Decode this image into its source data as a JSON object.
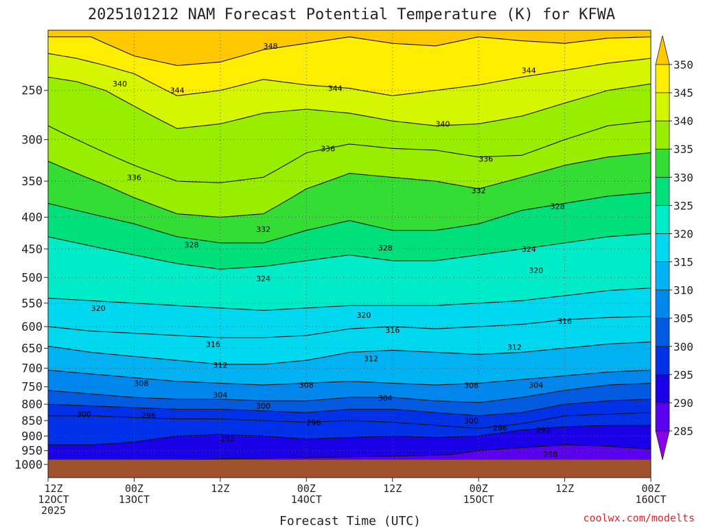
{
  "title": "2025101212 NAM Forecast Potential Temperature (K) for KFWA",
  "credit": "coolwx.com/modelts",
  "chart_data": {
    "type": "heatmap",
    "title": "2025101212 NAM Forecast Potential Temperature (K) for KFWA",
    "xlabel": "Forecast Time (UTC)",
    "ylabel": "",
    "y_scale": "log-pressure (hPa), reversed",
    "ylim": [
      1050,
      200
    ],
    "xlim_hours": [
      0,
      84
    ],
    "y_ticks": [
      250,
      300,
      350,
      400,
      450,
      500,
      550,
      600,
      650,
      700,
      750,
      800,
      850,
      900,
      950,
      1000
    ],
    "x_ticks": [
      {
        "hour": 0,
        "lines": [
          "12Z",
          "12OCT",
          "2025"
        ]
      },
      {
        "hour": 12,
        "lines": [
          "00Z",
          "13OCT"
        ]
      },
      {
        "hour": 24,
        "lines": [
          "12Z"
        ]
      },
      {
        "hour": 36,
        "lines": [
          "00Z",
          "14OCT"
        ]
      },
      {
        "hour": 48,
        "lines": [
          "12Z"
        ]
      },
      {
        "hour": 60,
        "lines": [
          "00Z",
          "15OCT"
        ]
      },
      {
        "hour": 72,
        "lines": [
          "12Z"
        ]
      },
      {
        "hour": 84,
        "lines": [
          "00Z",
          "16OCT"
        ]
      }
    ],
    "colorbar": {
      "levels": [
        285,
        290,
        295,
        300,
        305,
        310,
        315,
        320,
        325,
        330,
        335,
        340,
        345,
        350
      ],
      "colors": [
        "#8a00e8",
        "#5a00ef",
        "#1a00e6",
        "#0030e8",
        "#005be0",
        "#0087ee",
        "#00b2f2",
        "#00d8f0",
        "#00ecc8",
        "#00e07a",
        "#33dd33",
        "#99ee00",
        "#d6f500",
        "#ffee00",
        "#ffc800"
      ],
      "extend": "both"
    },
    "ground_color": "#a0522d",
    "ground_pressure": 1000,
    "isentropes": [
      {
        "theta": 348,
        "points": [
          [
            0,
            205
          ],
          [
            6,
            205
          ],
          [
            12,
            220
          ],
          [
            18,
            228
          ],
          [
            24,
            225
          ],
          [
            30,
            215
          ],
          [
            36,
            210
          ],
          [
            42,
            205
          ],
          [
            48,
            210
          ],
          [
            54,
            212
          ],
          [
            60,
            205
          ],
          [
            66,
            208
          ],
          [
            72,
            210
          ],
          [
            78,
            206
          ],
          [
            84,
            205
          ]
        ]
      },
      {
        "theta": 344,
        "points": [
          [
            0,
            218
          ],
          [
            4,
            222
          ],
          [
            8,
            228
          ],
          [
            12,
            235
          ],
          [
            18,
            255
          ],
          [
            24,
            250
          ],
          [
            30,
            240
          ],
          [
            36,
            245
          ],
          [
            42,
            248
          ],
          [
            48,
            255
          ],
          [
            54,
            250
          ],
          [
            60,
            245
          ],
          [
            66,
            238
          ],
          [
            72,
            232
          ],
          [
            78,
            226
          ],
          [
            84,
            222
          ]
        ]
      },
      {
        "theta": 340,
        "points": [
          [
            0,
            238
          ],
          [
            4,
            242
          ],
          [
            8,
            250
          ],
          [
            12,
            265
          ],
          [
            18,
            288
          ],
          [
            24,
            283
          ],
          [
            30,
            272
          ],
          [
            36,
            268
          ],
          [
            42,
            272
          ],
          [
            48,
            280
          ],
          [
            54,
            285
          ],
          [
            60,
            283
          ],
          [
            66,
            275
          ],
          [
            72,
            262
          ],
          [
            78,
            250
          ],
          [
            84,
            244
          ]
        ]
      },
      {
        "theta": 336,
        "points": [
          [
            0,
            285
          ],
          [
            4,
            300
          ],
          [
            8,
            315
          ],
          [
            12,
            330
          ],
          [
            18,
            350
          ],
          [
            24,
            352
          ],
          [
            30,
            345
          ],
          [
            36,
            315
          ],
          [
            42,
            305
          ],
          [
            48,
            310
          ],
          [
            54,
            312
          ],
          [
            60,
            320
          ],
          [
            66,
            318
          ],
          [
            72,
            300
          ],
          [
            78,
            285
          ],
          [
            84,
            280
          ]
        ]
      },
      {
        "theta": 332,
        "points": [
          [
            0,
            325
          ],
          [
            4,
            340
          ],
          [
            8,
            355
          ],
          [
            12,
            372
          ],
          [
            18,
            395
          ],
          [
            24,
            400
          ],
          [
            30,
            395
          ],
          [
            36,
            360
          ],
          [
            42,
            340
          ],
          [
            48,
            345
          ],
          [
            54,
            350
          ],
          [
            60,
            360
          ],
          [
            66,
            345
          ],
          [
            72,
            330
          ],
          [
            78,
            320
          ],
          [
            84,
            315
          ]
        ]
      },
      {
        "theta": 328,
        "points": [
          [
            0,
            380
          ],
          [
            6,
            395
          ],
          [
            12,
            410
          ],
          [
            18,
            430
          ],
          [
            24,
            440
          ],
          [
            30,
            440
          ],
          [
            36,
            420
          ],
          [
            42,
            405
          ],
          [
            48,
            420
          ],
          [
            54,
            420
          ],
          [
            60,
            410
          ],
          [
            66,
            390
          ],
          [
            72,
            380
          ],
          [
            78,
            370
          ],
          [
            84,
            365
          ]
        ]
      },
      {
        "theta": 324,
        "points": [
          [
            0,
            430
          ],
          [
            6,
            445
          ],
          [
            12,
            460
          ],
          [
            18,
            475
          ],
          [
            24,
            485
          ],
          [
            30,
            480
          ],
          [
            36,
            470
          ],
          [
            42,
            460
          ],
          [
            48,
            470
          ],
          [
            54,
            470
          ],
          [
            60,
            460
          ],
          [
            66,
            450
          ],
          [
            72,
            440
          ],
          [
            78,
            430
          ],
          [
            84,
            425
          ]
        ]
      },
      {
        "theta": 320,
        "points": [
          [
            0,
            540
          ],
          [
            6,
            545
          ],
          [
            12,
            550
          ],
          [
            18,
            555
          ],
          [
            24,
            560
          ],
          [
            30,
            565
          ],
          [
            36,
            560
          ],
          [
            42,
            555
          ],
          [
            48,
            555
          ],
          [
            54,
            555
          ],
          [
            60,
            550
          ],
          [
            66,
            545
          ],
          [
            72,
            535
          ],
          [
            78,
            525
          ],
          [
            84,
            520
          ]
        ]
      },
      {
        "theta": 316,
        "points": [
          [
            0,
            600
          ],
          [
            6,
            610
          ],
          [
            12,
            615
          ],
          [
            18,
            620
          ],
          [
            24,
            625
          ],
          [
            30,
            625
          ],
          [
            36,
            620
          ],
          [
            42,
            605
          ],
          [
            48,
            600
          ],
          [
            54,
            605
          ],
          [
            60,
            600
          ],
          [
            66,
            595
          ],
          [
            72,
            585
          ],
          [
            78,
            580
          ],
          [
            84,
            578
          ]
        ]
      },
      {
        "theta": 312,
        "points": [
          [
            0,
            645
          ],
          [
            6,
            660
          ],
          [
            12,
            670
          ],
          [
            18,
            680
          ],
          [
            24,
            690
          ],
          [
            30,
            690
          ],
          [
            36,
            680
          ],
          [
            42,
            660
          ],
          [
            48,
            655
          ],
          [
            54,
            660
          ],
          [
            60,
            665
          ],
          [
            66,
            660
          ],
          [
            72,
            650
          ],
          [
            78,
            640
          ],
          [
            84,
            635
          ]
        ]
      },
      {
        "theta": 308,
        "points": [
          [
            0,
            705
          ],
          [
            6,
            715
          ],
          [
            12,
            725
          ],
          [
            18,
            735
          ],
          [
            24,
            740
          ],
          [
            30,
            745
          ],
          [
            36,
            740
          ],
          [
            42,
            735
          ],
          [
            48,
            740
          ],
          [
            54,
            745
          ],
          [
            60,
            740
          ],
          [
            66,
            730
          ],
          [
            72,
            720
          ],
          [
            78,
            710
          ],
          [
            84,
            705
          ]
        ]
      },
      {
        "theta": 304,
        "points": [
          [
            0,
            760
          ],
          [
            6,
            770
          ],
          [
            12,
            780
          ],
          [
            18,
            785
          ],
          [
            24,
            785
          ],
          [
            30,
            790
          ],
          [
            36,
            790
          ],
          [
            42,
            780
          ],
          [
            48,
            780
          ],
          [
            54,
            790
          ],
          [
            60,
            795
          ],
          [
            66,
            780
          ],
          [
            72,
            760
          ],
          [
            78,
            745
          ],
          [
            84,
            740
          ]
        ]
      },
      {
        "theta": 300,
        "points": [
          [
            0,
            800
          ],
          [
            6,
            805
          ],
          [
            12,
            810
          ],
          [
            18,
            815
          ],
          [
            24,
            815
          ],
          [
            30,
            820
          ],
          [
            36,
            825
          ],
          [
            42,
            815
          ],
          [
            48,
            815
          ],
          [
            54,
            825
          ],
          [
            60,
            835
          ],
          [
            66,
            825
          ],
          [
            72,
            800
          ],
          [
            78,
            790
          ],
          [
            84,
            785
          ]
        ]
      },
      {
        "theta": 296,
        "points": [
          [
            0,
            835
          ],
          [
            6,
            835
          ],
          [
            12,
            840
          ],
          [
            18,
            845
          ],
          [
            24,
            845
          ],
          [
            30,
            850
          ],
          [
            36,
            855
          ],
          [
            42,
            850
          ],
          [
            48,
            855
          ],
          [
            54,
            865
          ],
          [
            60,
            875
          ],
          [
            66,
            860
          ],
          [
            72,
            835
          ],
          [
            78,
            830
          ],
          [
            84,
            825
          ]
        ]
      },
      {
        "theta": 292,
        "points": [
          [
            0,
            930
          ],
          [
            6,
            930
          ],
          [
            12,
            920
          ],
          [
            18,
            900
          ],
          [
            24,
            895
          ],
          [
            30,
            900
          ],
          [
            36,
            910
          ],
          [
            42,
            905
          ],
          [
            48,
            900
          ],
          [
            54,
            905
          ],
          [
            60,
            900
          ],
          [
            66,
            880
          ],
          [
            72,
            870
          ],
          [
            78,
            865
          ],
          [
            84,
            865
          ]
        ]
      },
      {
        "theta": 288,
        "points": [
          [
            0,
            1000
          ],
          [
            12,
            990
          ],
          [
            24,
            980
          ],
          [
            36,
            975
          ],
          [
            48,
            970
          ],
          [
            56,
            965
          ],
          [
            60,
            950
          ],
          [
            66,
            940
          ],
          [
            72,
            930
          ],
          [
            78,
            935
          ],
          [
            84,
            945
          ]
        ]
      }
    ],
    "contour_labels": [
      {
        "text": "348",
        "hour": 31,
        "p": 212
      },
      {
        "text": "344",
        "hour": 67,
        "p": 232
      },
      {
        "text": "340",
        "hour": 10,
        "p": 244
      },
      {
        "text": "344",
        "hour": 18,
        "p": 250
      },
      {
        "text": "344",
        "hour": 40,
        "p": 248
      },
      {
        "text": "340",
        "hour": 55,
        "p": 283
      },
      {
        "text": "336",
        "hour": 39,
        "p": 310
      },
      {
        "text": "336",
        "hour": 61,
        "p": 322
      },
      {
        "text": "336",
        "hour": 12,
        "p": 345
      },
      {
        "text": "332",
        "hour": 60,
        "p": 362
      },
      {
        "text": "328",
        "hour": 71,
        "p": 384
      },
      {
        "text": "332",
        "hour": 30,
        "p": 418
      },
      {
        "text": "328",
        "hour": 20,
        "p": 443
      },
      {
        "text": "328",
        "hour": 47,
        "p": 448
      },
      {
        "text": "324",
        "hour": 67,
        "p": 450
      },
      {
        "text": "320",
        "hour": 68,
        "p": 487
      },
      {
        "text": "324",
        "hour": 30,
        "p": 502
      },
      {
        "text": "320",
        "hour": 7,
        "p": 560
      },
      {
        "text": "320",
        "hour": 44,
        "p": 575
      },
      {
        "text": "316",
        "hour": 48,
        "p": 608
      },
      {
        "text": "316",
        "hour": 72,
        "p": 588
      },
      {
        "text": "316",
        "hour": 23,
        "p": 640
      },
      {
        "text": "312",
        "hour": 65,
        "p": 648
      },
      {
        "text": "312",
        "hour": 45,
        "p": 675
      },
      {
        "text": "312",
        "hour": 24,
        "p": 692
      },
      {
        "text": "308",
        "hour": 13,
        "p": 740
      },
      {
        "text": "308",
        "hour": 36,
        "p": 745
      },
      {
        "text": "308",
        "hour": 59,
        "p": 746
      },
      {
        "text": "304",
        "hour": 24,
        "p": 773
      },
      {
        "text": "304",
        "hour": 47,
        "p": 782
      },
      {
        "text": "304",
        "hour": 68,
        "p": 745
      },
      {
        "text": "300",
        "hour": 30,
        "p": 805
      },
      {
        "text": "300",
        "hour": 59,
        "p": 850
      },
      {
        "text": "300",
        "hour": 5,
        "p": 830
      },
      {
        "text": "296",
        "hour": 14,
        "p": 833
      },
      {
        "text": "296",
        "hour": 37,
        "p": 857
      },
      {
        "text": "296",
        "hour": 63,
        "p": 873
      },
      {
        "text": "292",
        "hour": 25,
        "p": 908
      },
      {
        "text": "292",
        "hour": 69,
        "p": 880
      },
      {
        "text": "288",
        "hour": 70,
        "p": 963
      }
    ]
  }
}
